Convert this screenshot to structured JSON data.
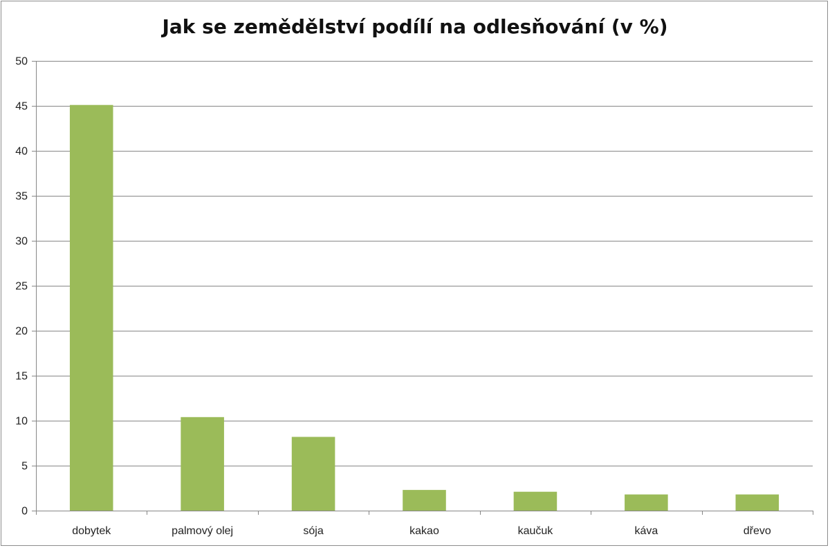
{
  "chart_data": {
    "type": "bar",
    "title": "Jak se zemědělství podílí na odlesňování (v %)",
    "xlabel": "",
    "ylabel": "",
    "categories": [
      "dobytek",
      "palmový olej",
      "sója",
      "kakao",
      "kaučuk",
      "káva",
      "dřevo"
    ],
    "values": [
      45.1,
      10.4,
      8.2,
      2.3,
      2.1,
      1.8,
      1.8
    ],
    "ylim": [
      0,
      50
    ],
    "yticks": [
      0,
      5,
      10,
      15,
      20,
      25,
      30,
      35,
      40,
      45,
      50
    ],
    "grid": true,
    "legend": "none",
    "bar_color": "#9bbb59",
    "grid_color": "#868686"
  }
}
